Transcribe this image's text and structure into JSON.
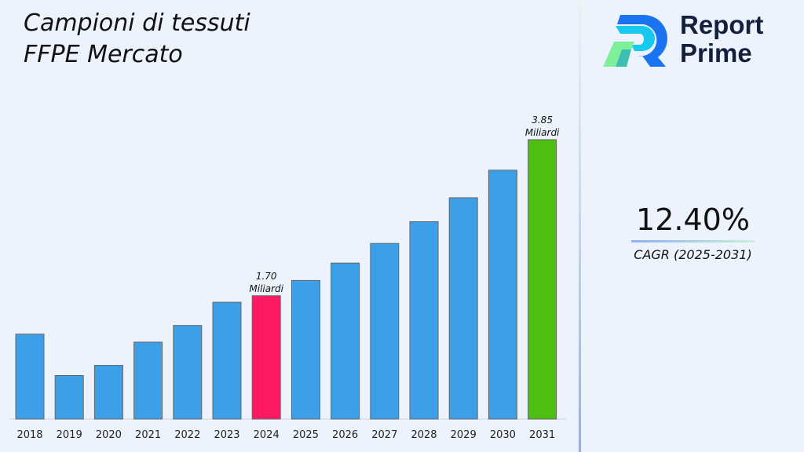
{
  "title_lines": [
    "Campioni di tessuti",
    "FFPE Mercato"
  ],
  "logo": {
    "text_lines": [
      "Report",
      "Prime"
    ]
  },
  "cagr": {
    "value": "12.40%",
    "label": "CAGR (2025-2031)"
  },
  "colors": {
    "default_bar": "#3ba0e8",
    "highlight_2024": "#ff1a63",
    "highlight_2031": "#4cbf12"
  },
  "chart_data": {
    "type": "bar",
    "categories": [
      "2018",
      "2019",
      "2020",
      "2021",
      "2022",
      "2023",
      "2024",
      "2025",
      "2026",
      "2027",
      "2028",
      "2029",
      "2030",
      "2031"
    ],
    "values": [
      1.17,
      0.6,
      0.74,
      1.06,
      1.29,
      1.61,
      1.7,
      1.91,
      2.15,
      2.42,
      2.72,
      3.05,
      3.43,
      3.85
    ],
    "data_labels": [
      {
        "index": 6,
        "value": "1.70",
        "unit": "Miliardi"
      },
      {
        "index": 13,
        "value": "3.85",
        "unit": "Miliardi"
      }
    ],
    "grid": false,
    "ylim": [
      0,
      3.85
    ]
  }
}
